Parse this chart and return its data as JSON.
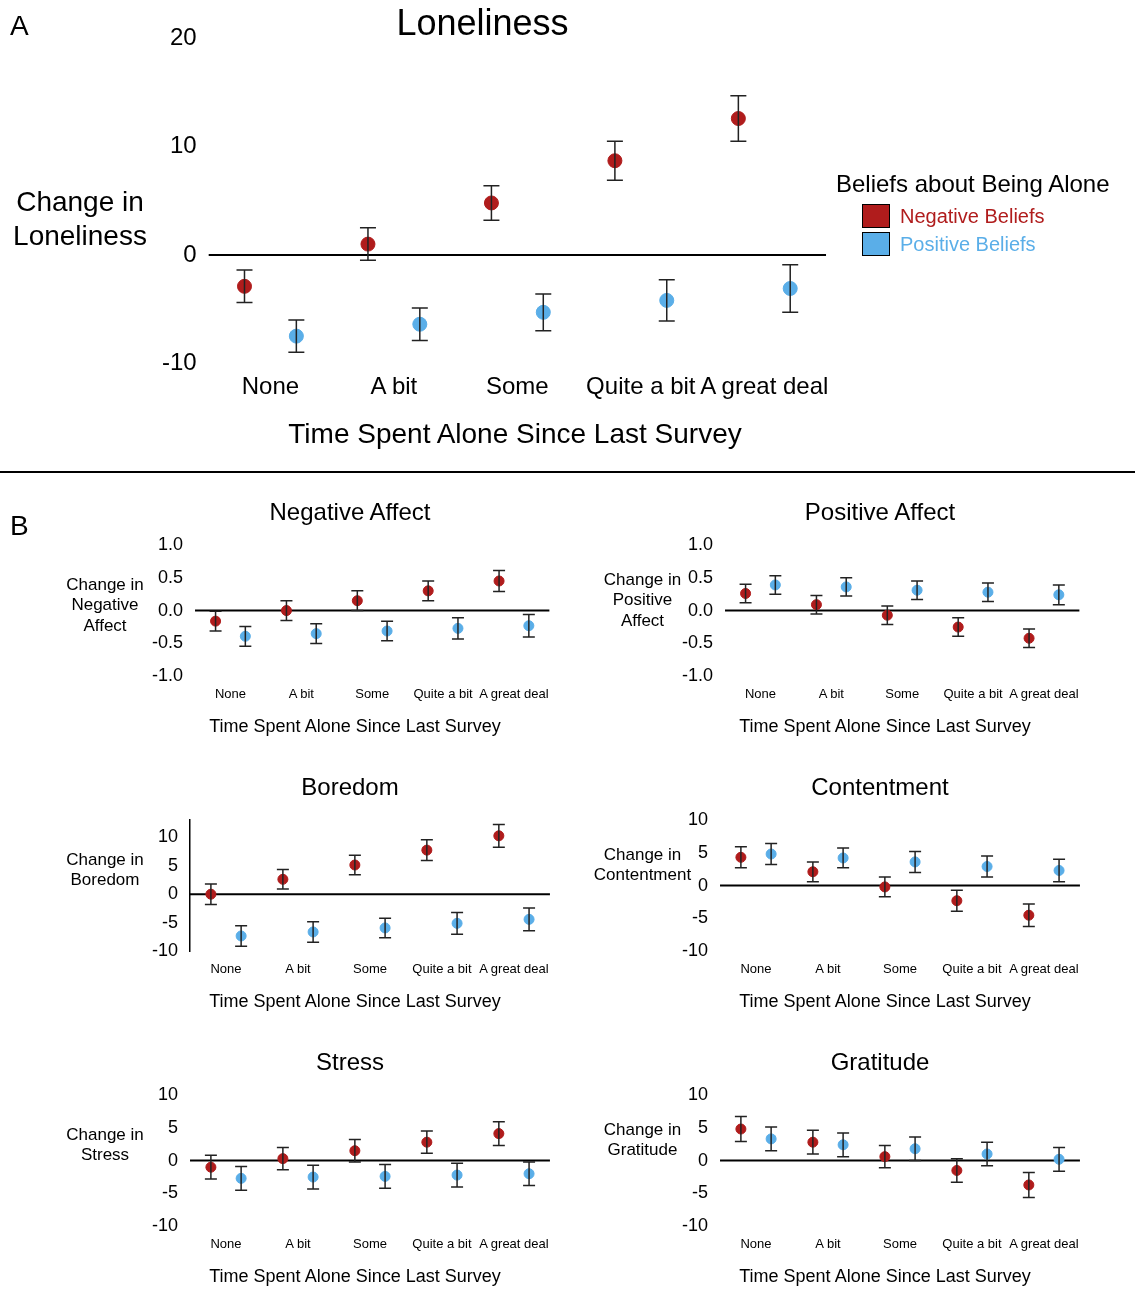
{
  "chart_data": [
    {
      "type": "scatter",
      "title": "Loneliness",
      "xlabel": "Time Spent Alone Since Last Survey",
      "ylabel": "Change in\nLoneliness",
      "legend_title": "Beliefs about Being Alone",
      "legend": "right",
      "marker": "circle",
      "annotations": [
        "A"
      ],
      "categories": [
        "None",
        "A bit",
        "Some",
        "Quite a bit",
        "A great deal"
      ],
      "ylim": [
        -10,
        20
      ],
      "yticks": [
        -10,
        0,
        10,
        20
      ],
      "ref_lines": [
        {
          "axis": "y",
          "value": 0,
          "color": "#000000"
        }
      ],
      "series": [
        {
          "name": "Negative Beliefs",
          "color": "#b01c1c",
          "values": [
            -2.9,
            1.0,
            4.8,
            8.7,
            12.6
          ],
          "errors": [
            1.5,
            1.5,
            1.6,
            1.8,
            2.1
          ]
        },
        {
          "name": "Positive Beliefs",
          "color": "#5aaee8",
          "values": [
            -7.5,
            -6.4,
            -5.3,
            -4.2,
            -3.1
          ],
          "errors": [
            1.5,
            1.5,
            1.7,
            1.9,
            2.2
          ]
        }
      ]
    },
    {
      "type": "scatter",
      "title": "Negative Affect",
      "xlabel": "Time Spent Alone Since Last Survey",
      "ylabel": "Change in\nNegative\nAffect",
      "marker": "circle",
      "annotations": [
        "B"
      ],
      "categories": [
        "None",
        "A bit",
        "Some",
        "Quite a bit",
        "A great deal"
      ],
      "ylim": [
        -1,
        1
      ],
      "yticks": [
        {
          "value": -1,
          "label": "-1.0"
        },
        {
          "value": -0.5,
          "label": "-0.5"
        },
        {
          "value": 0,
          "label": "0.0"
        },
        {
          "value": 0.5,
          "label": "0.5"
        },
        {
          "value": 1,
          "label": "1.0"
        }
      ],
      "ref_lines": [
        {
          "axis": "y",
          "value": 0,
          "color": "#000000"
        }
      ],
      "series": [
        {
          "color": "#b01c1c",
          "values": [
            -0.16,
            0.0,
            0.15,
            0.3,
            0.45
          ],
          "errors": [
            0.15,
            0.15,
            0.15,
            0.15,
            0.16
          ]
        },
        {
          "color": "#5aaee8",
          "values": [
            -0.39,
            -0.35,
            -0.31,
            -0.27,
            -0.23
          ],
          "errors": [
            0.15,
            0.15,
            0.15,
            0.16,
            0.17
          ]
        }
      ]
    },
    {
      "type": "scatter",
      "title": "Positive Affect",
      "xlabel": "Time Spent Alone Since Last Survey",
      "ylabel": "Change in\nPositive\nAffect",
      "marker": "circle",
      "categories": [
        "None",
        "A bit",
        "Some",
        "Quite a bit",
        "A great deal"
      ],
      "ylim": [
        -1,
        1
      ],
      "yticks": [
        {
          "value": -1,
          "label": "-1.0"
        },
        {
          "value": -0.5,
          "label": "-0.5"
        },
        {
          "value": 0,
          "label": "0.0"
        },
        {
          "value": 0.5,
          "label": "0.5"
        },
        {
          "value": 1,
          "label": "1.0"
        }
      ],
      "ref_lines": [
        {
          "axis": "y",
          "value": 0,
          "color": "#000000"
        }
      ],
      "series": [
        {
          "color": "#b01c1c",
          "values": [
            0.26,
            0.09,
            -0.07,
            -0.25,
            -0.42
          ],
          "errors": [
            0.14,
            0.14,
            0.14,
            0.14,
            0.14
          ]
        },
        {
          "color": "#5aaee8",
          "values": [
            0.39,
            0.36,
            0.31,
            0.28,
            0.24
          ],
          "errors": [
            0.14,
            0.14,
            0.14,
            0.14,
            0.15
          ]
        }
      ]
    },
    {
      "type": "scatter",
      "title": "Boredom",
      "xlabel": "Time Spent Alone Since Last Survey",
      "ylabel": "Change in\nBoredom",
      "marker": "circle",
      "categories": [
        "None",
        "A bit",
        "Some",
        "Quite a bit",
        "A great deal"
      ],
      "ylim": [
        -10,
        13
      ],
      "yticks": [
        -10,
        -5,
        0,
        5,
        10
      ],
      "ref_lines": [
        {
          "axis": "y",
          "value": 0,
          "color": "#000000"
        }
      ],
      "series": [
        {
          "color": "#b01c1c",
          "values": [
            0.0,
            2.6,
            5.1,
            7.7,
            10.2
          ],
          "errors": [
            1.8,
            1.7,
            1.7,
            1.8,
            2.0
          ]
        },
        {
          "color": "#5aaee8",
          "values": [
            -7.3,
            -6.6,
            -5.9,
            -5.1,
            -4.4
          ],
          "errors": [
            1.8,
            1.8,
            1.7,
            1.9,
            2.0
          ]
        }
      ]
    },
    {
      "type": "scatter",
      "title": "Contentment",
      "xlabel": "Time Spent Alone Since Last Survey",
      "ylabel": "Change in\nContentment",
      "marker": "circle",
      "categories": [
        "None",
        "A bit",
        "Some",
        "Quite a bit",
        "A great deal"
      ],
      "ylim": [
        -10,
        10
      ],
      "yticks": [
        -10,
        -5,
        0,
        5,
        10
      ],
      "ref_lines": [
        {
          "axis": "y",
          "value": 0,
          "color": "#000000"
        }
      ],
      "series": [
        {
          "color": "#b01c1c",
          "values": [
            4.3,
            2.1,
            -0.2,
            -2.3,
            -4.5
          ],
          "errors": [
            1.6,
            1.5,
            1.5,
            1.6,
            1.7
          ]
        },
        {
          "color": "#5aaee8",
          "values": [
            4.8,
            4.2,
            3.6,
            2.9,
            2.3
          ],
          "errors": [
            1.6,
            1.5,
            1.6,
            1.6,
            1.7
          ]
        }
      ]
    },
    {
      "type": "scatter",
      "title": "Stress",
      "xlabel": "Time Spent Alone Since Last Survey",
      "ylabel": "Change in\nStress",
      "marker": "circle",
      "categories": [
        "None",
        "A bit",
        "Some",
        "Quite a bit",
        "A great deal"
      ],
      "ylim": [
        -10,
        10
      ],
      "yticks": [
        -10,
        -5,
        0,
        5,
        10
      ],
      "ref_lines": [
        {
          "axis": "y",
          "value": 0,
          "color": "#000000"
        }
      ],
      "series": [
        {
          "color": "#b01c1c",
          "values": [
            -1.0,
            0.3,
            1.5,
            2.8,
            4.1
          ],
          "errors": [
            1.8,
            1.7,
            1.7,
            1.7,
            1.8
          ]
        },
        {
          "color": "#5aaee8",
          "values": [
            -2.7,
            -2.5,
            -2.4,
            -2.2,
            -2.0
          ],
          "errors": [
            1.8,
            1.8,
            1.8,
            1.8,
            1.8
          ]
        }
      ]
    },
    {
      "type": "scatter",
      "title": "Gratitude",
      "xlabel": "Time Spent Alone Since Last Survey",
      "ylabel": "Change in\nGratitude",
      "marker": "circle",
      "categories": [
        "None",
        "A bit",
        "Some",
        "Quite a bit",
        "A great deal"
      ],
      "ylim": [
        -10,
        10
      ],
      "yticks": [
        -10,
        -5,
        0,
        5,
        10
      ],
      "ref_lines": [
        {
          "axis": "y",
          "value": 0,
          "color": "#000000"
        }
      ],
      "series": [
        {
          "color": "#b01c1c",
          "values": [
            4.8,
            2.8,
            0.6,
            -1.5,
            -3.7
          ],
          "errors": [
            1.9,
            1.8,
            1.7,
            1.8,
            1.9
          ]
        },
        {
          "color": "#5aaee8",
          "values": [
            3.3,
            2.4,
            1.8,
            1.0,
            0.2
          ],
          "errors": [
            1.8,
            1.8,
            1.8,
            1.8,
            1.8
          ]
        }
      ]
    }
  ]
}
